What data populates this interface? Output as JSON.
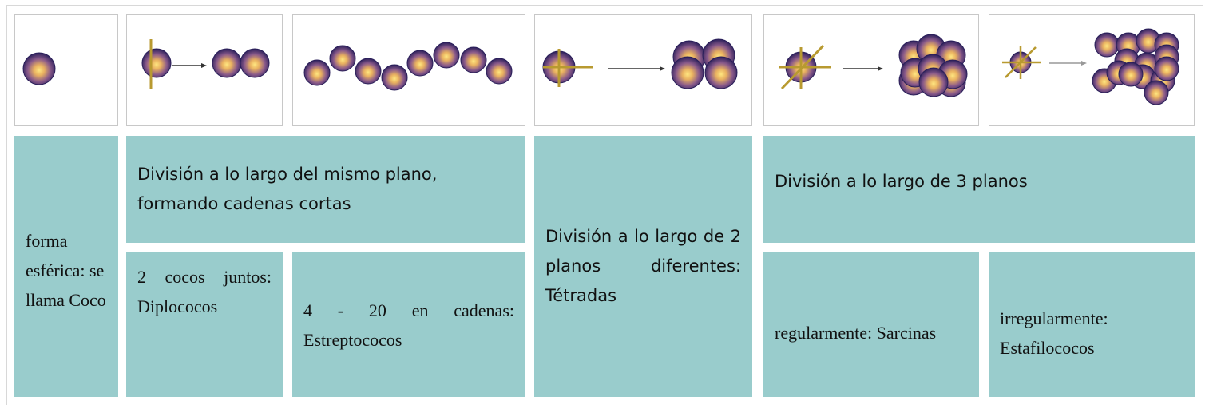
{
  "table": {
    "rows": [
      [
        "forma esférica: se llama Coco",
        "División a lo largo del mismo plano, formando cadenas cortas",
        "División a lo largo de 2 planos diferentes: Tétradas",
        "División a lo largo de 3 planos"
      ],
      [
        "2 cocos juntos: Diplococos",
        "4 - 20 en cadenas: Estreptococos",
        "regularmente: Sarcinas",
        "irregularmente: Estafilococos"
      ]
    ]
  }
}
